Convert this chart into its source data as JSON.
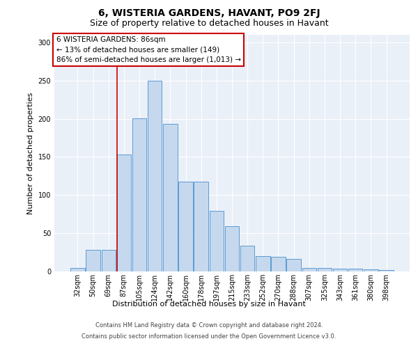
{
  "title": "6, WISTERIA GARDENS, HAVANT, PO9 2FJ",
  "subtitle": "Size of property relative to detached houses in Havant",
  "xlabel": "Distribution of detached houses by size in Havant",
  "ylabel": "Number of detached properties",
  "categories": [
    "32sqm",
    "50sqm",
    "69sqm",
    "87sqm",
    "105sqm",
    "124sqm",
    "142sqm",
    "160sqm",
    "178sqm",
    "197sqm",
    "215sqm",
    "233sqm",
    "252sqm",
    "270sqm",
    "288sqm",
    "307sqm",
    "325sqm",
    "343sqm",
    "361sqm",
    "380sqm",
    "398sqm"
  ],
  "values": [
    5,
    28,
    28,
    153,
    201,
    250,
    193,
    118,
    118,
    79,
    59,
    34,
    20,
    19,
    16,
    5,
    5,
    4,
    4,
    3,
    2
  ],
  "bar_color": "#c5d8ed",
  "bar_edge_color": "#5b9bd5",
  "background_color": "#eaf0f8",
  "vline_index": 3,
  "vline_color": "#cc0000",
  "annotation_line1": "6 WISTERIA GARDENS: 86sqm",
  "annotation_line2": "← 13% of detached houses are smaller (149)",
  "annotation_line3": "86% of semi-detached houses are larger (1,013) →",
  "annotation_box_facecolor": "#ffffff",
  "annotation_box_edgecolor": "#cc0000",
  "footer_line1": "Contains HM Land Registry data © Crown copyright and database right 2024.",
  "footer_line2": "Contains public sector information licensed under the Open Government Licence v3.0.",
  "ylim": [
    0,
    310
  ],
  "yticks": [
    0,
    50,
    100,
    150,
    200,
    250,
    300
  ],
  "title_fontsize": 10,
  "subtitle_fontsize": 9,
  "ylabel_fontsize": 8,
  "xlabel_fontsize": 8,
  "tick_fontsize": 7,
  "annot_fontsize": 7.5,
  "footer_fontsize": 6
}
